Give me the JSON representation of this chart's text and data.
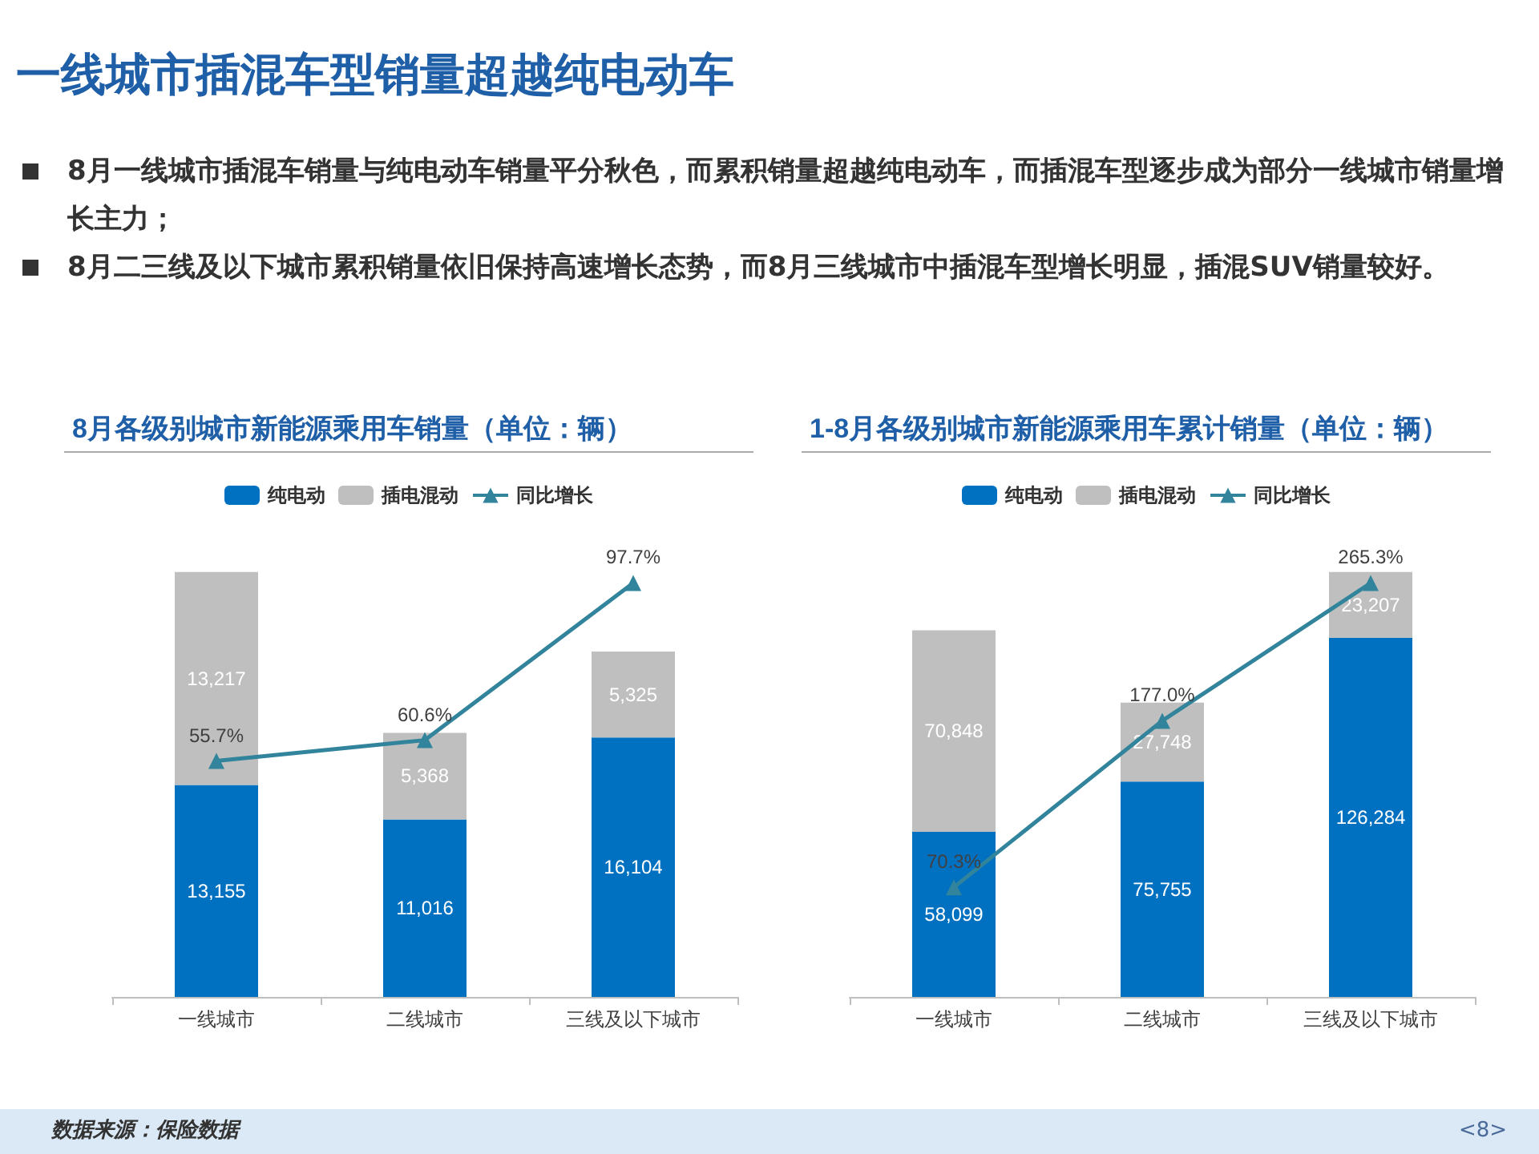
{
  "chart_data": [
    {
      "type": "other",
      "title": "一线城市插混车型销量超越纯电动车",
      "annotations": [
        "8月一线城市插混车销量与纯电动车销量平分秋色，而累积销量超越纯电动车，而插混车型逐步成为部分一线城市销量增长主力；",
        "8月二三线及以下城市累积销量依旧保持高速增长态势，而8月三线城市中插混车型增长明显，插混SUV销量较好。",
        "数据来源：保险数据",
        "<8>"
      ]
    },
    {
      "type": "bar",
      "title": "8月各级别城市新能源乘用车销量（单位：辆）",
      "categories": [
        "一线城市",
        "二线城市",
        "三线及以下城市"
      ],
      "stacked": true,
      "legend": "top",
      "tick_labels": "x",
      "series": [
        {
          "name": "纯电动",
          "color": "#0070c0",
          "values": [
            13155,
            11016,
            16104
          ],
          "value_labels": [
            "13,155",
            "11,016",
            "16,104"
          ]
        },
        {
          "name": "插电混动",
          "color": "#bfbfbf",
          "values": [
            13217,
            5368,
            5325
          ],
          "value_labels": [
            "13,217",
            "5,368",
            "5,325"
          ]
        },
        {
          "name": "同比增长",
          "type": "line",
          "axis": "y2",
          "marker": "triangle",
          "color": "#31849b",
          "values": [
            55.7,
            60.6,
            97.7
          ],
          "value_labels": [
            "55.7%",
            "60.6%",
            "97.7%"
          ]
        }
      ]
    },
    {
      "type": "bar",
      "title": "1-8月各级别城市新能源乘用车累计销量（单位：辆）",
      "categories": [
        "一线城市",
        "二线城市",
        "三线及以下城市"
      ],
      "stacked": true,
      "legend": "top",
      "tick_labels": "x",
      "series": [
        {
          "name": "纯电动",
          "color": "#0070c0",
          "values": [
            58099,
            75755,
            126284
          ],
          "value_labels": [
            "58,099",
            "75,755",
            "126,284"
          ]
        },
        {
          "name": "插电混动",
          "color": "#bfbfbf",
          "values": [
            70848,
            27748,
            23207
          ],
          "value_labels": [
            "70,848",
            "27,748",
            "23,207"
          ]
        },
        {
          "name": "同比增长",
          "type": "line",
          "axis": "y2",
          "marker": "triangle",
          "color": "#31849b",
          "values": [
            70.3,
            177.0,
            265.3
          ],
          "value_labels": [
            "70.3%",
            "177.0%",
            "265.3%"
          ]
        }
      ]
    }
  ]
}
